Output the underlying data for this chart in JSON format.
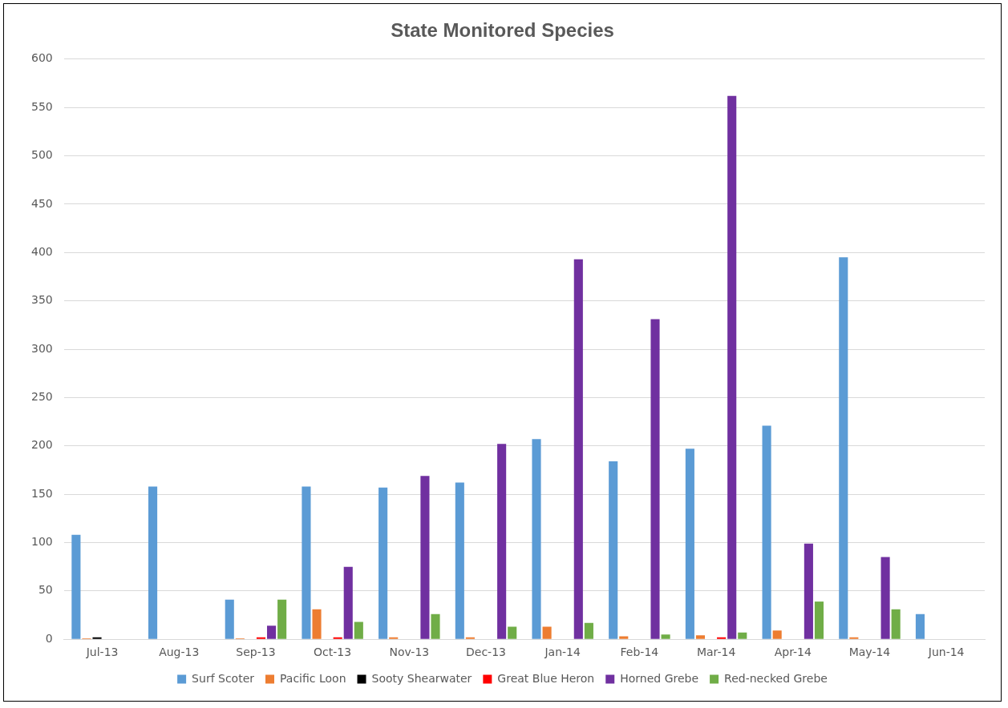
{
  "chart_data": {
    "type": "bar",
    "title": "State Monitored Species",
    "categories": [
      "Jul-13",
      "Aug-13",
      "Sep-13",
      "Oct-13",
      "Nov-13",
      "Dec-13",
      "Jan-14",
      "Feb-14",
      "Mar-14",
      "Apr-14",
      "May-14",
      "Jun-14"
    ],
    "series": [
      {
        "name": "Surf Scoter",
        "color": "#5b9bd5",
        "values": [
          108,
          158,
          41,
          158,
          157,
          162,
          207,
          184,
          197,
          221,
          395,
          26
        ]
      },
      {
        "name": "Pacific Loon",
        "color": "#ed7d31",
        "values": [
          1,
          0,
          1,
          31,
          2,
          2,
          13,
          3,
          4,
          9,
          2,
          0
        ]
      },
      {
        "name": "Sooty Shearwater",
        "color": "#000000",
        "values": [
          2,
          0,
          0,
          0,
          0,
          0,
          0,
          0,
          0,
          0,
          0,
          0
        ]
      },
      {
        "name": "Great Blue Heron",
        "color": "#ff0000",
        "values": [
          0,
          0,
          2,
          2,
          0,
          0,
          0,
          0,
          2,
          0,
          0,
          0
        ]
      },
      {
        "name": "Horned Grebe",
        "color": "#7030a0",
        "values": [
          0,
          0,
          14,
          75,
          169,
          202,
          393,
          331,
          562,
          99,
          85,
          0
        ]
      },
      {
        "name": "Red-necked Grebe",
        "color": "#70ad47",
        "values": [
          0,
          0,
          41,
          18,
          26,
          13,
          17,
          5,
          7,
          39,
          31,
          0
        ]
      }
    ],
    "ylim": [
      0,
      600
    ],
    "yticks": [
      0,
      50,
      100,
      150,
      200,
      250,
      300,
      350,
      400,
      450,
      500,
      550,
      600
    ],
    "grid": "y",
    "legend": "bottom"
  }
}
